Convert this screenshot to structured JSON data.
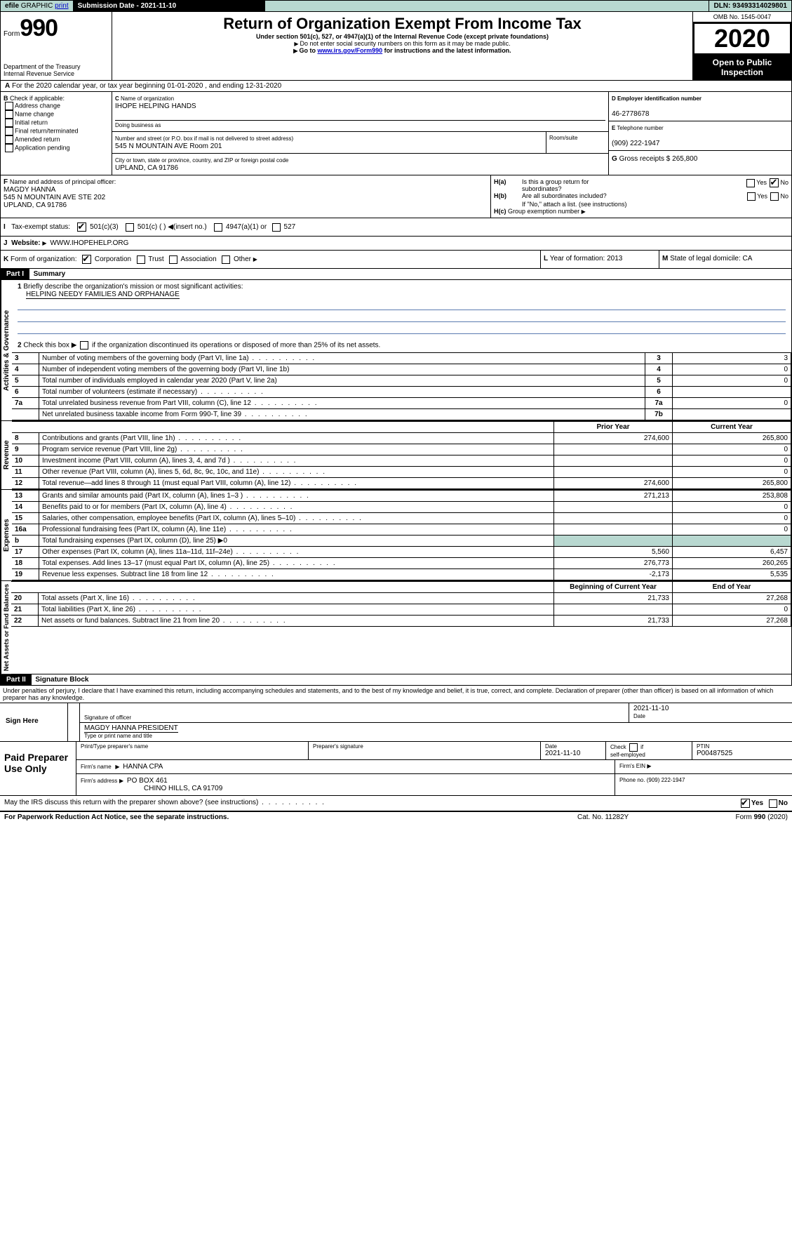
{
  "topbar": {
    "efile": "efile",
    "graphic": "GRAPHIC",
    "print": "print",
    "subdate_lbl": "Submission Date - 2021-11-10",
    "dln_lbl": "DLN: 93493314029801"
  },
  "hdr": {
    "form": "Form",
    "n990": "990",
    "dept": "Department of the Treasury",
    "irs": "Internal Revenue Service",
    "title": "Return of Organization Exempt From Income Tax",
    "sub1": "Under section 501(c), 527, or 4947(a)(1) of the Internal Revenue Code (except private foundations)",
    "sub2": "Do not enter social security numbers on this form as it may be made public.",
    "sub3": "Go to",
    "sub3link": "www.irs.gov/Form990",
    "sub3b": " for instructions and the latest information.",
    "omb": "OMB No. 1545-0047",
    "year": "2020",
    "open": "Open to Public Inspection"
  },
  "A": {
    "line": "For the 2020 calendar year, or tax year beginning 01-01-2020  , and ending 12-31-2020"
  },
  "B": {
    "lbl": "Check if applicable:",
    "addr": "Address change",
    "name": "Name change",
    "init": "Initial return",
    "final": "Final return/terminated",
    "amend": "Amended return",
    "app": "Application pending"
  },
  "C": {
    "namelbl": "Name of organization",
    "name": "IHOPE HELPING HANDS",
    "dba": "Doing business as",
    "streetlbl": "Number and street (or P.O. box if mail is not delivered to street address)",
    "room": "Room/suite",
    "street": "545 N MOUNTAIN AVE Room 201",
    "citylbl": "City or town, state or province, country, and ZIP or foreign postal code",
    "city": "UPLAND, CA  91786"
  },
  "D": {
    "lbl": "Employer identification number",
    "val": "46-2778678"
  },
  "E": {
    "lbl": "Telephone number",
    "val": "(909) 222-1947"
  },
  "G": {
    "lbl": "Gross receipts $",
    "val": "265,800"
  },
  "F": {
    "lbl": "Name and address of principal officer:",
    "n": "MAGDY HANNA",
    "a1": "545 N MOUNTAIN AVE STE 202",
    "a2": "UPLAND, CA  91786"
  },
  "H": {
    "a": "Is this a group return for",
    "a2": "subordinates?",
    "b": "Are all subordinates included?",
    "bnote": "If \"No,\" attach a list. (see instructions)",
    "c": "Group exemption number",
    "yes": "Yes",
    "no": "No"
  },
  "I": {
    "lbl": "Tax-exempt status:",
    "c3": "501(c)(3)",
    "c": "501(c) (  )",
    "ins": "(insert no.)",
    "a1": "4947(a)(1) or",
    "s527": "527"
  },
  "J": {
    "lbl": "Website:",
    "val": "WWW.IHOPEHELP.ORG"
  },
  "K": {
    "lbl": "Form of organization:",
    "corp": "Corporation",
    "trust": "Trust",
    "assoc": "Association",
    "other": "Other"
  },
  "L": {
    "lbl": "Year of formation:",
    "val": "2013"
  },
  "M": {
    "lbl": "State of legal domicile:",
    "val": "CA"
  },
  "p1": {
    "title": "Summary",
    "l1": "Briefly describe the organization's mission or most significant activities:",
    "l1v": "HELPING NEEDY FAMILIES AND ORPHANAGE",
    "l2": "Check this box ▶",
    "l2b": "if the organization discontinued its operations or disposed of more than 25% of its net assets.",
    "rows": [
      {
        "n": "3",
        "t": "Number of voting members of the governing body (Part VI, line 1a)",
        "box": "3",
        "v": "3"
      },
      {
        "n": "4",
        "t": "Number of independent voting members of the governing body (Part VI, line 1b)",
        "box": "4",
        "v": "0"
      },
      {
        "n": "5",
        "t": "Total number of individuals employed in calendar year 2020 (Part V, line 2a)",
        "box": "5",
        "v": "0"
      },
      {
        "n": "6",
        "t": "Total number of volunteers (estimate if necessary)",
        "box": "6",
        "v": ""
      },
      {
        "n": "7a",
        "t": "Total unrelated business revenue from Part VIII, column (C), line 12",
        "box": "7a",
        "v": "0"
      },
      {
        "n": "",
        "t": "Net unrelated business taxable income from Form 990-T, line 39",
        "box": "7b",
        "v": ""
      }
    ],
    "col1": "Prior Year",
    "col2": "Current Year",
    "rev": [
      {
        "n": "8",
        "t": "Contributions and grants (Part VIII, line 1h)",
        "p": "274,600",
        "c": "265,800"
      },
      {
        "n": "9",
        "t": "Program service revenue (Part VIII, line 2g)",
        "p": "",
        "c": "0"
      },
      {
        "n": "10",
        "t": "Investment income (Part VIII, column (A), lines 3, 4, and 7d )",
        "p": "",
        "c": "0"
      },
      {
        "n": "11",
        "t": "Other revenue (Part VIII, column (A), lines 5, 6d, 8c, 9c, 10c, and 11e)",
        "p": "",
        "c": "0"
      },
      {
        "n": "12",
        "t": "Total revenue—add lines 8 through 11 (must equal Part VIII, column (A), line 12)",
        "p": "274,600",
        "c": "265,800"
      }
    ],
    "exp": [
      {
        "n": "13",
        "t": "Grants and similar amounts paid (Part IX, column (A), lines 1–3 )",
        "p": "271,213",
        "c": "253,808"
      },
      {
        "n": "14",
        "t": "Benefits paid to or for members (Part IX, column (A), line 4)",
        "p": "",
        "c": "0"
      },
      {
        "n": "15",
        "t": "Salaries, other compensation, employee benefits (Part IX, column (A), lines 5–10)",
        "p": "",
        "c": "0"
      },
      {
        "n": "16a",
        "t": "Professional fundraising fees (Part IX, column (A), line 11e)",
        "p": "",
        "c": "0"
      },
      {
        "n": "b",
        "t": "Total fundraising expenses (Part IX, column (D), line 25) ▶0",
        "p": "—",
        "c": "—"
      },
      {
        "n": "17",
        "t": "Other expenses (Part IX, column (A), lines 11a–11d, 11f–24e)",
        "p": "5,560",
        "c": "6,457"
      },
      {
        "n": "18",
        "t": "Total expenses. Add lines 13–17 (must equal Part IX, column (A), line 25)",
        "p": "276,773",
        "c": "260,265"
      },
      {
        "n": "19",
        "t": "Revenue less expenses. Subtract line 18 from line 12",
        "p": "-2,173",
        "c": "5,535"
      }
    ],
    "col3": "Beginning of Current Year",
    "col4": "End of Year",
    "net": [
      {
        "n": "20",
        "t": "Total assets (Part X, line 16)",
        "p": "21,733",
        "c": "27,268"
      },
      {
        "n": "21",
        "t": "Total liabilities (Part X, line 26)",
        "p": "",
        "c": "0"
      },
      {
        "n": "22",
        "t": "Net assets or fund balances. Subtract line 21 from line 20",
        "p": "21,733",
        "c": "27,268"
      }
    ],
    "vtext": {
      "ag": "Activities & Governance",
      "rev": "Revenue",
      "exp": "Expenses",
      "net": "Net Assets or Fund Balances"
    }
  },
  "p2": {
    "title": "Signature Block",
    "decl": "Under penalties of perjury, I declare that I have examined this return, including accompanying schedules and statements, and to the best of my knowledge and belief, it is true, correct, and complete. Declaration of preparer (other than officer) is based on all information of which preparer has any knowledge.",
    "sign": "Sign Here",
    "sigoff": "Signature of officer",
    "date": "Date",
    "datev": "2021-11-10",
    "name": "MAGDY HANNA  PRESIDENT",
    "namelbl": "Type or print name and title",
    "paid": "Paid Preparer Use Only",
    "ppname": "Print/Type preparer's name",
    "ppsig": "Preparer's signature",
    "ppdate": "Date",
    "ppdatev": "2021-11-10",
    "ppchk": "Check",
    "ppif": "if",
    "ppse": "self-employed",
    "ptin": "PTIN",
    "ptinv": "P00487525",
    "firm": "Firm's name",
    "firmv": "HANNA CPA",
    "fein": "Firm's EIN",
    "faddr": "Firm's address",
    "faddrv": "PO BOX 461",
    "faddrv2": "CHINO HILLS, CA  91709",
    "fphone": "Phone no. (909) 222-1947",
    "discuss": "May the IRS discuss this return with the preparer shown above? (see instructions)",
    "pra": "For Paperwork Reduction Act Notice, see the separate instructions.",
    "cat": "Cat. No. 11282Y",
    "form": "Form",
    "f990": "990",
    "fyr": "(2020)"
  }
}
